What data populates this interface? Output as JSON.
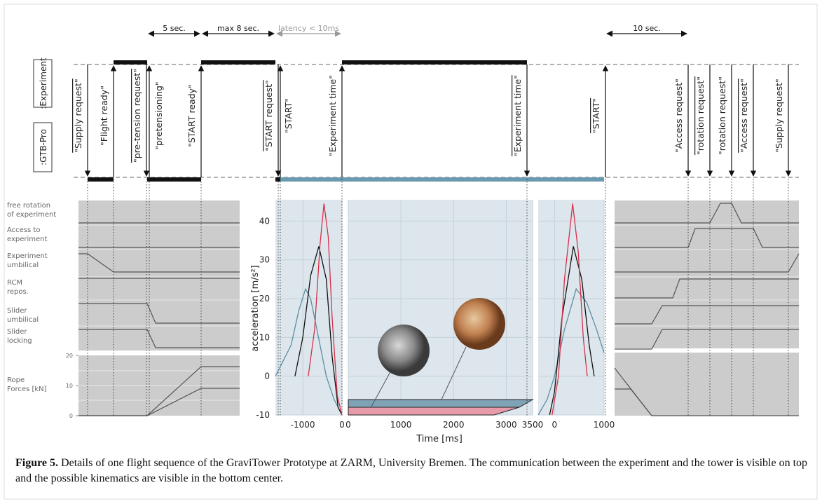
{
  "timing": {
    "lanes": [
      ":Experiment",
      ":GTB-Pro"
    ],
    "durations": [
      "5 sec.",
      "max 8 sec.",
      "latency < 10ms",
      "10 sec."
    ],
    "signals": [
      {
        "label": "\"Supply request\"",
        "direction": "down",
        "negated": true
      },
      {
        "label": "\"Flight ready\"",
        "direction": "up",
        "negated": false
      },
      {
        "label": "\"pre-tension request\"",
        "direction": "down",
        "negated": true
      },
      {
        "label": "\"pretensioning\"",
        "direction": "up",
        "negated": false
      },
      {
        "label": "\"START ready\"",
        "direction": "up",
        "negated": false
      },
      {
        "label": "\"START request\"",
        "direction": "down",
        "negated": true
      },
      {
        "label": "\"START\"",
        "direction": "up",
        "negated": false
      },
      {
        "label": "\"Experiment time\"",
        "direction": "up",
        "negated": false
      },
      {
        "label": "\"Experiment time\"",
        "direction": "down",
        "negated": true
      },
      {
        "label": "\"START\"",
        "direction": "up",
        "negated": true
      },
      {
        "label": "\"Access request\"",
        "direction": "down",
        "negated": false
      },
      {
        "label": "\"rotation request\"",
        "direction": "down",
        "negated": true
      },
      {
        "label": "\"rotation request\"",
        "direction": "down",
        "negated": false
      },
      {
        "label": "\"Access request\"",
        "direction": "down",
        "negated": true
      },
      {
        "label": "\"Supply request\"",
        "direction": "down",
        "negated": false
      }
    ]
  },
  "states": {
    "rows": [
      [
        "free rotation",
        "of experiment"
      ],
      [
        "Access to",
        "experiment"
      ],
      [
        "Experiment",
        "umbilical"
      ],
      [
        "RCM",
        "repos."
      ],
      [
        "Slider",
        "umbilical"
      ],
      [
        "Slider",
        "locking"
      ],
      [
        "Rope",
        "Forces [kN]"
      ]
    ],
    "rope_ylim": [
      0,
      20
    ],
    "rope_yticks": [
      0,
      10,
      20
    ]
  },
  "kinematics": {
    "ylabel": "acceleration [m/s²]",
    "xlabel": "Time [ms]",
    "ylim": [
      -10,
      45.5
    ],
    "yticks": [
      -10,
      0,
      10,
      20,
      30,
      40
    ],
    "panels": [
      {
        "xlim": [
          -1700,
          0
        ],
        "xticks": [
          -1000,
          0
        ],
        "series": [
          {
            "color": "#5b8fa3",
            "x": [
              -1700,
              -1300,
              -1100,
              -930,
              -800,
              -600,
              -400,
              -200,
              0
            ],
            "y": [
              0,
              8,
              17,
              22.5,
              20,
              10,
              0,
              -6,
              -10
            ]
          },
          {
            "color": "#111111",
            "x": [
              -1200,
              -1000,
              -800,
              -590,
              -400,
              -250,
              -100,
              0
            ],
            "y": [
              0,
              10,
              26,
              33.5,
              25,
              5,
              -8,
              -10
            ]
          },
          {
            "color": "#d6304a",
            "x": [
              -860,
              -700,
              -560,
              -460,
              -350,
              -250,
              -120,
              0
            ],
            "y": [
              0,
              12,
              34,
              44.5,
              36,
              15,
              -5,
              -10
            ]
          }
        ]
      },
      {
        "xlim": [
          0,
          3500
        ],
        "xticks": [
          0,
          1000,
          2000,
          3000,
          3500
        ],
        "series": []
      },
      {
        "xlim": [
          -330,
          1000
        ],
        "xticks": [
          0,
          1000
        ],
        "series": [
          {
            "color": "#5b8fa3",
            "x": [
              -330,
              -150,
              0,
              200,
              437,
              650,
              850,
              1000
            ],
            "y": [
              -10,
              -6,
              0,
              12,
              22.5,
              19,
              12,
              6
            ]
          },
          {
            "color": "#111111",
            "x": [
              -100,
              0,
              150,
              380,
              550,
              700,
              800
            ],
            "y": [
              -10,
              -4,
              15,
              33.5,
              25,
              8,
              0
            ]
          },
          {
            "color": "#d6304a",
            "x": [
              -50,
              80,
              200,
              366,
              480,
              580,
              660
            ],
            "y": [
              -10,
              0,
              25,
              44.5,
              32,
              10,
              0
            ]
          }
        ]
      }
    ]
  },
  "caption": {
    "label": "Figure 5.",
    "text": "Details of one flight sequence of the GraviTower Prototype at ZARM, University Bremen. The communication between the experiment and the tower is visible on top and the possible kinematics are visible in the bottom center."
  }
}
